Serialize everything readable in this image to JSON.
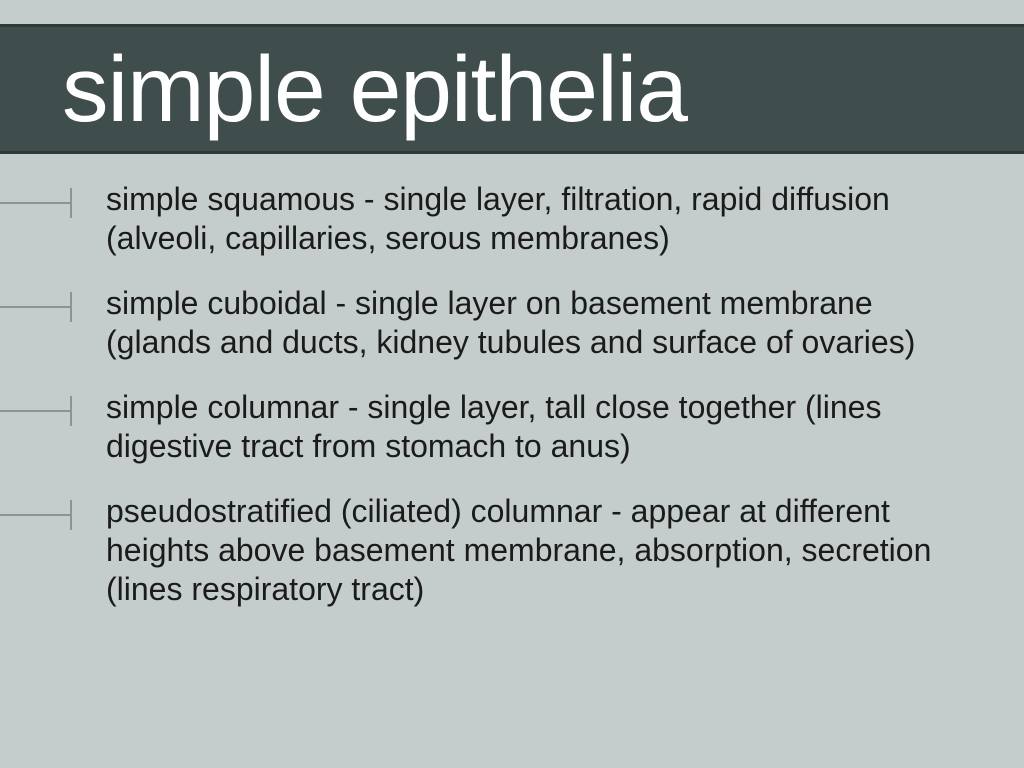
{
  "slide": {
    "title": "simple epithelia",
    "title_color": "#ffffff",
    "title_fontsize": 93,
    "title_bar_bg": "#3f4e4c",
    "title_bar_border": "#2f3a38",
    "background_color": "#c4cdcb",
    "bullet_marker_color": "#8a9492",
    "body_text_color": "#1b1b1b",
    "body_fontsize": 32,
    "bullets": [
      {
        "text": "simple squamous - single layer, filtration, rapid diffusion (alveoli, capillaries, serous membranes)"
      },
      {
        "text": "simple cuboidal - single layer on basement membrane (glands and ducts, kidney tubules and surface of ovaries)"
      },
      {
        "text": "simple columnar - single layer, tall close together (lines digestive tract from stomach to anus)"
      },
      {
        "text": "pseudostratified (ciliated) columnar - appear at different heights above basement membrane, absorption, secretion (lines respiratory tract)"
      }
    ]
  }
}
